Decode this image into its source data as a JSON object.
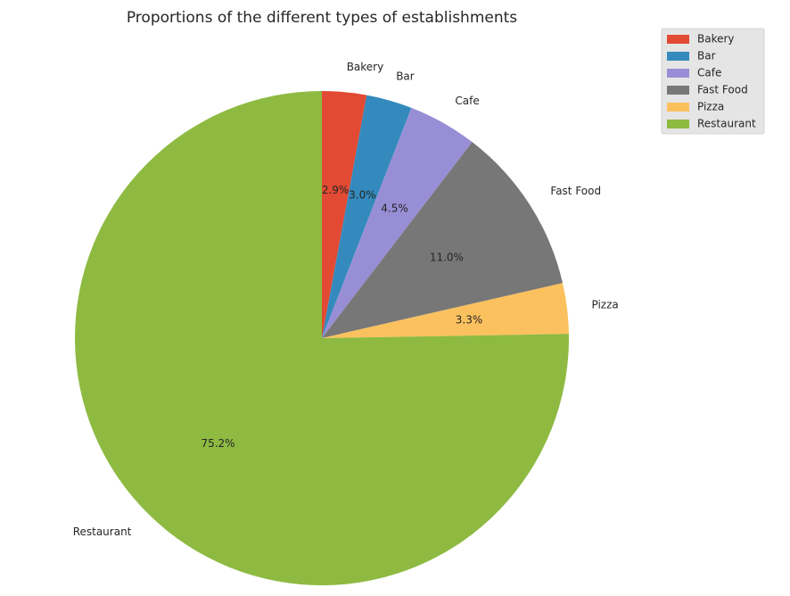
{
  "chart_data": {
    "type": "pie",
    "title": "Proportions of the different types of establishments",
    "start_angle_deg": 90,
    "direction": "clockwise",
    "legend_position": "top-right",
    "slices": [
      {
        "label": "Bakery",
        "value": 2.9,
        "pct_label": "2.9%",
        "color": "#E24A33"
      },
      {
        "label": "Bar",
        "value": 3.0,
        "pct_label": "3.0%",
        "color": "#348ABD"
      },
      {
        "label": "Cafe",
        "value": 4.5,
        "pct_label": "4.5%",
        "color": "#988ED5"
      },
      {
        "label": "Fast Food",
        "value": 11.0,
        "pct_label": "11.0%",
        "color": "#777777"
      },
      {
        "label": "Pizza",
        "value": 3.3,
        "pct_label": "3.3%",
        "color": "#FBC15E"
      },
      {
        "label": "Restaurant",
        "value": 75.2,
        "pct_label": "75.2%",
        "color": "#8EBA42"
      }
    ]
  }
}
